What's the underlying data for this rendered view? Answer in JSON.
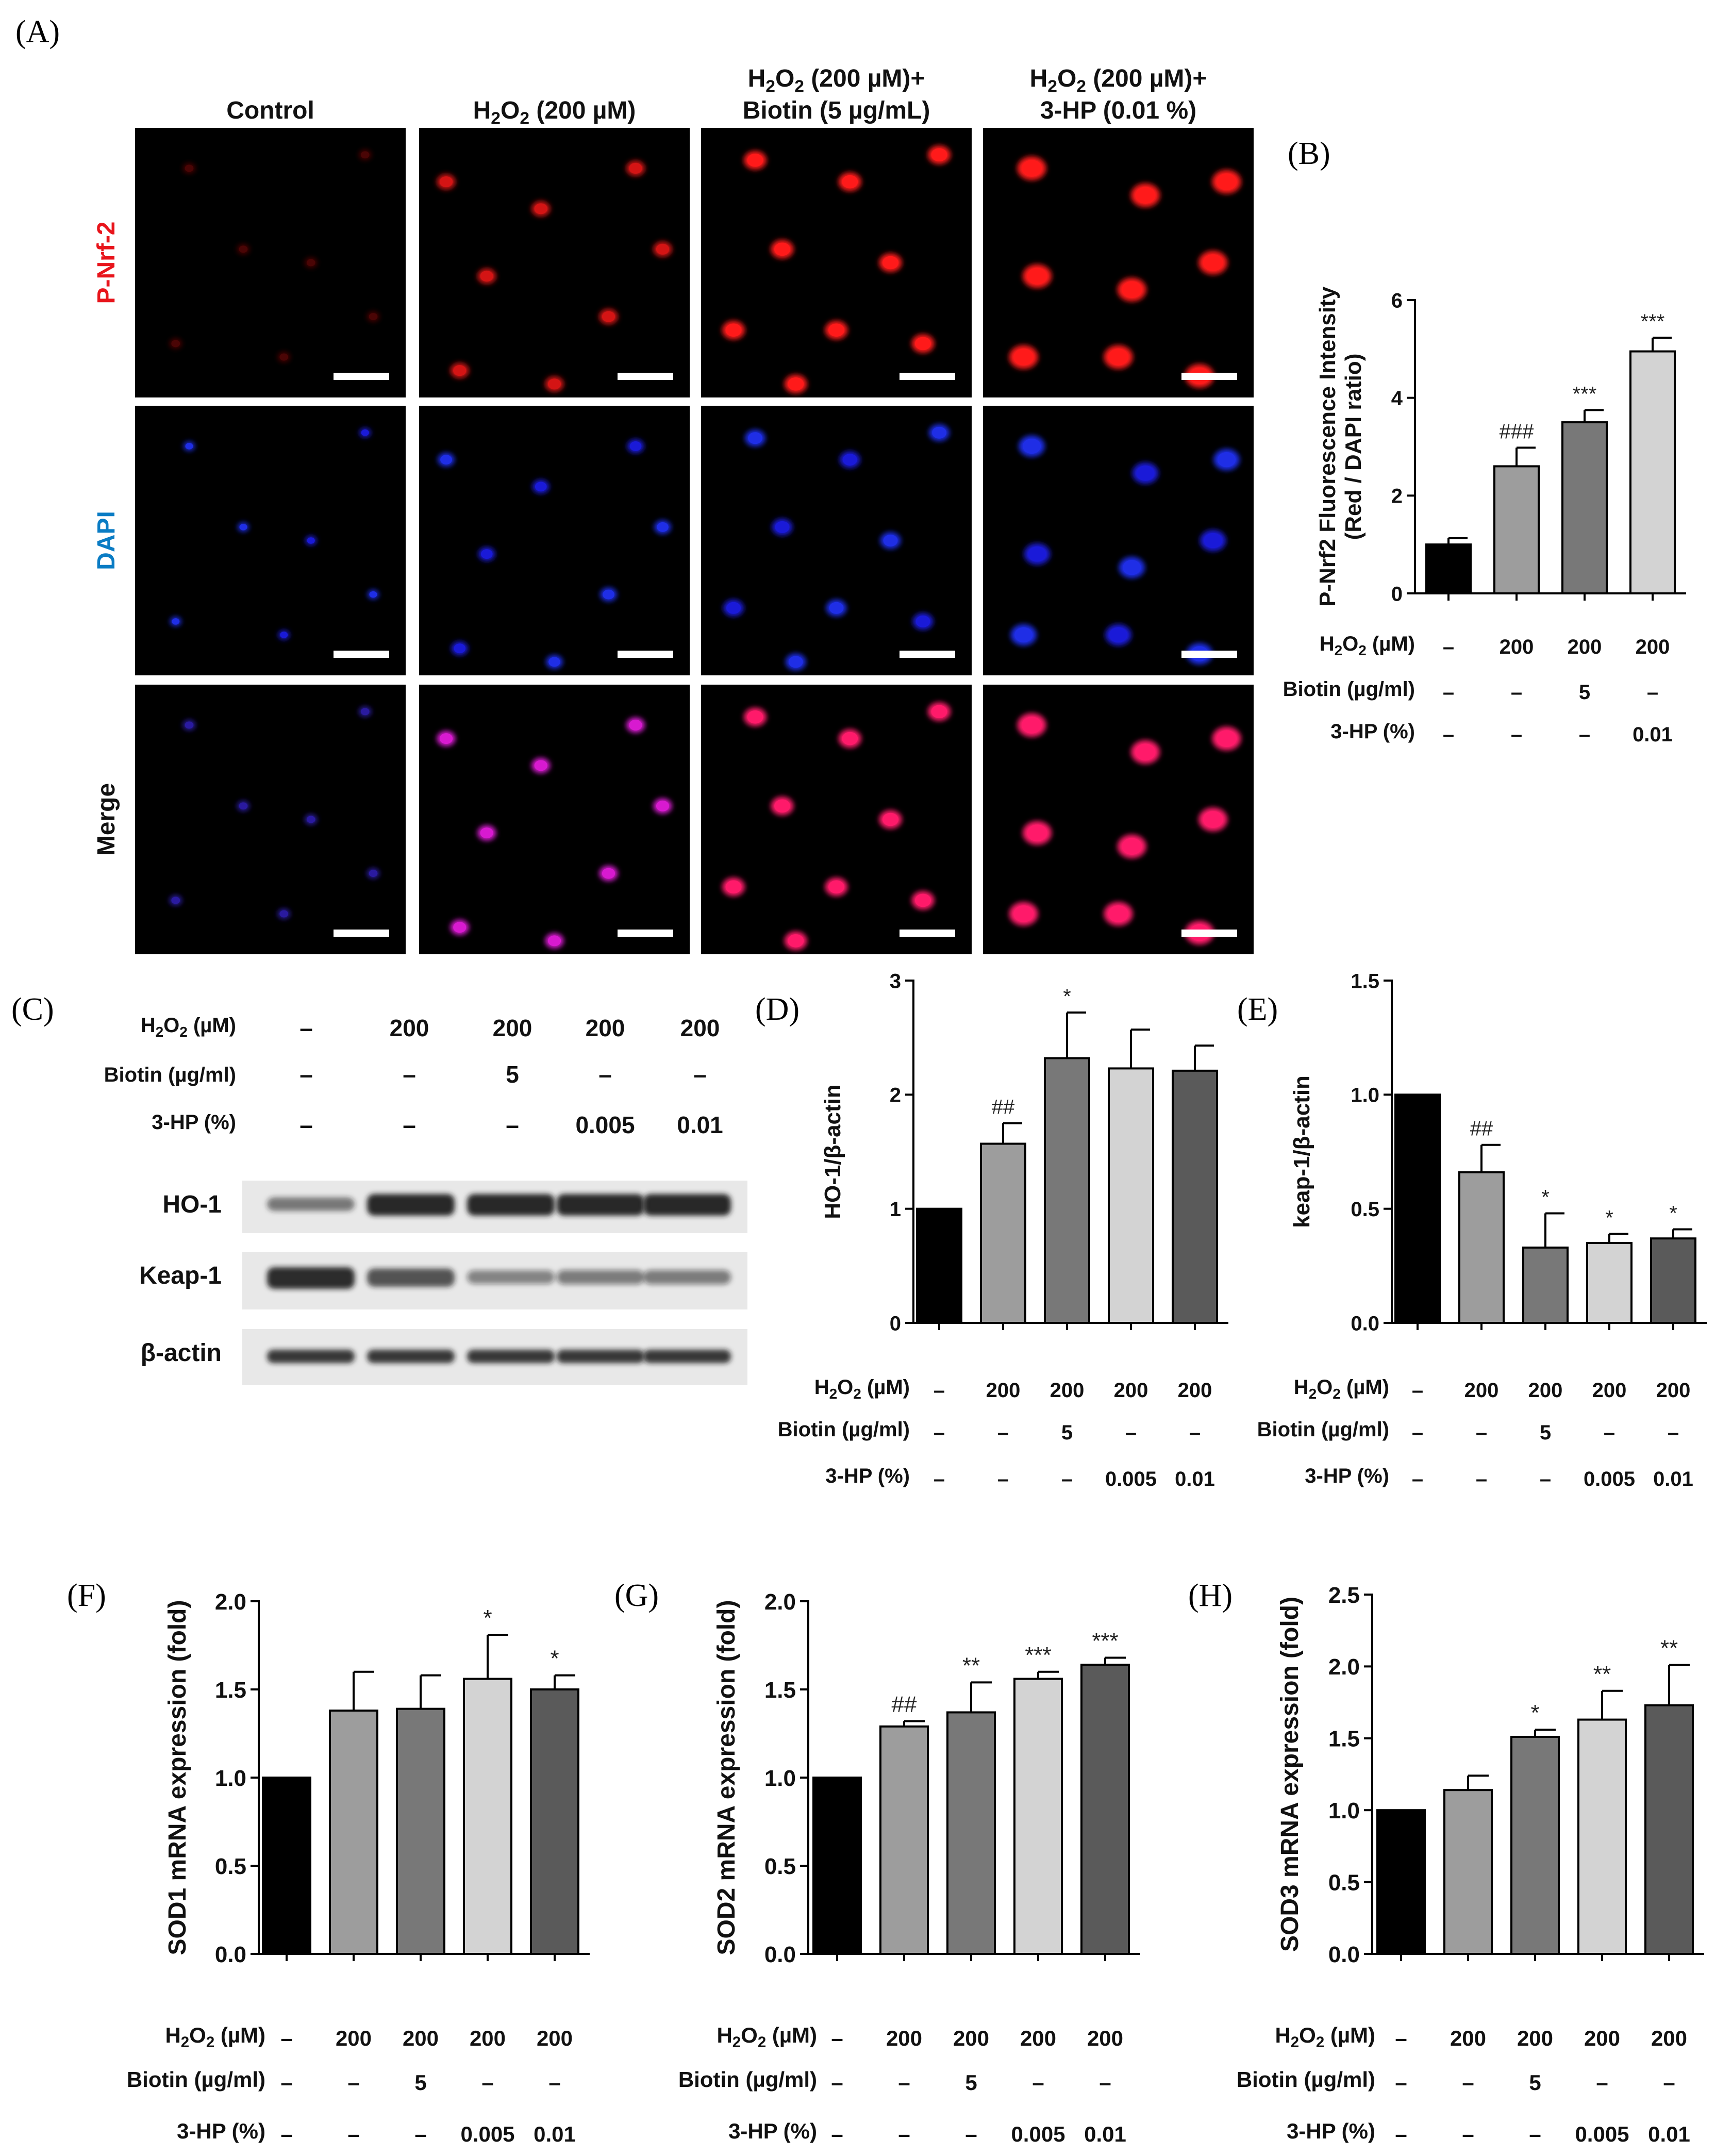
{
  "labels": {
    "A": "(A)",
    "B": "(B)",
    "C": "(C)",
    "D": "(D)",
    "E": "(E)",
    "F": "(F)",
    "G": "(G)",
    "H": "(H)"
  },
  "panelA": {
    "columns": [
      {
        "lines": [
          "Control"
        ]
      },
      {
        "lines": [
          "H2O2 (200 µM)"
        ]
      },
      {
        "lines": [
          "H2O2 (200 µM)+",
          "Biotin (5 µg/mL)"
        ]
      },
      {
        "lines": [
          "H2O2 (200 µM)+",
          "3-HP (0.01 %)"
        ]
      }
    ],
    "rows": [
      {
        "label": "P-Nrf-2",
        "color": "#e8141b"
      },
      {
        "label": "DAPI",
        "color": "#0a7cc4"
      },
      {
        "label": "Merge",
        "color": "#111111"
      }
    ]
  },
  "conditions": {
    "h2o2_label": "H2O2 (µM)",
    "biotin_label": "Biotin (µg/ml)",
    "hp_label": "3-HP (%)",
    "four_group": {
      "h2o2": [
        "–",
        "200",
        "200",
        "200"
      ],
      "biotin": [
        "–",
        "–",
        "5",
        "–"
      ],
      "hp": [
        "–",
        "–",
        "–",
        "0.01"
      ]
    },
    "five_group": {
      "h2o2": [
        "–",
        "200",
        "200",
        "200",
        "200"
      ],
      "biotin": [
        "–",
        "–",
        "5",
        "–",
        "–"
      ],
      "hp": [
        "–",
        "–",
        "–",
        "0.005",
        "0.01"
      ]
    }
  },
  "blot": {
    "h2o2": [
      "–",
      "200",
      "200",
      "200",
      "200"
    ],
    "biotin": [
      "–",
      "–",
      "5",
      "–",
      "–"
    ],
    "hp": [
      "–",
      "–",
      "–",
      "0.005",
      "0.01"
    ],
    "proteins": [
      "HO-1",
      "Keap-1",
      "β-actin"
    ]
  },
  "chart_data": [
    {
      "id": "B",
      "type": "bar",
      "ylabel_lines": [
        "P-Nrf2 Fluorescence Intensity",
        "(Red / DAPI ratio)"
      ],
      "yticks": [
        "0",
        "2",
        "4",
        "6"
      ],
      "tick_values": [
        0,
        2,
        4,
        6
      ],
      "ylim": [
        0,
        6
      ],
      "values": [
        1.0,
        2.6,
        3.5,
        4.95
      ],
      "errors": [
        0.13,
        0.38,
        0.25,
        0.28
      ],
      "annotations": [
        "",
        "###",
        "***",
        "***"
      ],
      "colors": [
        "#000000",
        "#9d9d9d",
        "#787878",
        "#d3d3d3"
      ]
    },
    {
      "id": "D",
      "type": "bar",
      "ylabel_lines": [
        "HO-1/β-actin"
      ],
      "yticks": [
        "0",
        "1",
        "2",
        "3"
      ],
      "tick_values": [
        0,
        1,
        2,
        3
      ],
      "ylim": [
        0,
        3
      ],
      "values": [
        1.0,
        1.57,
        2.32,
        2.23,
        2.21
      ],
      "errors": [
        0,
        0.18,
        0.4,
        0.34,
        0.22
      ],
      "annotations": [
        "",
        "##",
        "*",
        "",
        ""
      ],
      "colors": [
        "#000000",
        "#9d9d9d",
        "#787878",
        "#d3d3d3",
        "#5a5a5a"
      ]
    },
    {
      "id": "E",
      "type": "bar",
      "ylabel_lines": [
        "keap-1/β-actin"
      ],
      "yticks": [
        "0.0",
        "0.5",
        "1.0",
        "1.5"
      ],
      "tick_values": [
        0,
        0.5,
        1.0,
        1.5
      ],
      "ylim": [
        0,
        1.5
      ],
      "values": [
        1.0,
        0.66,
        0.33,
        0.35,
        0.37
      ],
      "errors": [
        0,
        0.12,
        0.15,
        0.04,
        0.04
      ],
      "annotations": [
        "",
        "##",
        "*",
        "*",
        "*"
      ],
      "colors": [
        "#000000",
        "#9d9d9d",
        "#787878",
        "#d3d3d3",
        "#5a5a5a"
      ]
    },
    {
      "id": "F",
      "type": "bar",
      "ylabel_lines": [
        "SOD1 mRNA expression (fold)"
      ],
      "yticks": [
        "0.0",
        "0.5",
        "1.0",
        "1.5",
        "2.0"
      ],
      "tick_values": [
        0,
        0.5,
        1.0,
        1.5,
        2.0
      ],
      "ylim": [
        0,
        2.0
      ],
      "values": [
        1.0,
        1.38,
        1.39,
        1.56,
        1.5
      ],
      "errors": [
        0,
        0.22,
        0.19,
        0.25,
        0.08
      ],
      "annotations": [
        "",
        "",
        "",
        "*",
        "*"
      ],
      "colors": [
        "#000000",
        "#9d9d9d",
        "#787878",
        "#d3d3d3",
        "#5a5a5a"
      ]
    },
    {
      "id": "G",
      "type": "bar",
      "ylabel_lines": [
        "SOD2 mRNA expression (fold)"
      ],
      "yticks": [
        "0.0",
        "0.5",
        "1.0",
        "1.5",
        "2.0"
      ],
      "tick_values": [
        0,
        0.5,
        1.0,
        1.5,
        2.0
      ],
      "ylim": [
        0,
        2.0
      ],
      "values": [
        1.0,
        1.29,
        1.37,
        1.56,
        1.64
      ],
      "errors": [
        0,
        0.03,
        0.17,
        0.04,
        0.04
      ],
      "annotations": [
        "",
        "##",
        "**",
        "***",
        "***"
      ],
      "colors": [
        "#000000",
        "#9d9d9d",
        "#787878",
        "#d3d3d3",
        "#5a5a5a"
      ]
    },
    {
      "id": "H",
      "type": "bar",
      "ylabel_lines": [
        "SOD3 mRNA expression (fold)"
      ],
      "yticks": [
        "0.0",
        "0.5",
        "1.0",
        "1.5",
        "2.0",
        "2.5"
      ],
      "tick_values": [
        0,
        0.5,
        1.0,
        1.5,
        2.0,
        2.5
      ],
      "ylim": [
        0,
        2.5
      ],
      "values": [
        1.0,
        1.14,
        1.51,
        1.63,
        1.73
      ],
      "errors": [
        0,
        0.1,
        0.05,
        0.2,
        0.28
      ],
      "annotations": [
        "",
        "",
        "*",
        "**",
        "**"
      ],
      "colors": [
        "#000000",
        "#9d9d9d",
        "#787878",
        "#d3d3d3",
        "#5a5a5a"
      ]
    }
  ]
}
